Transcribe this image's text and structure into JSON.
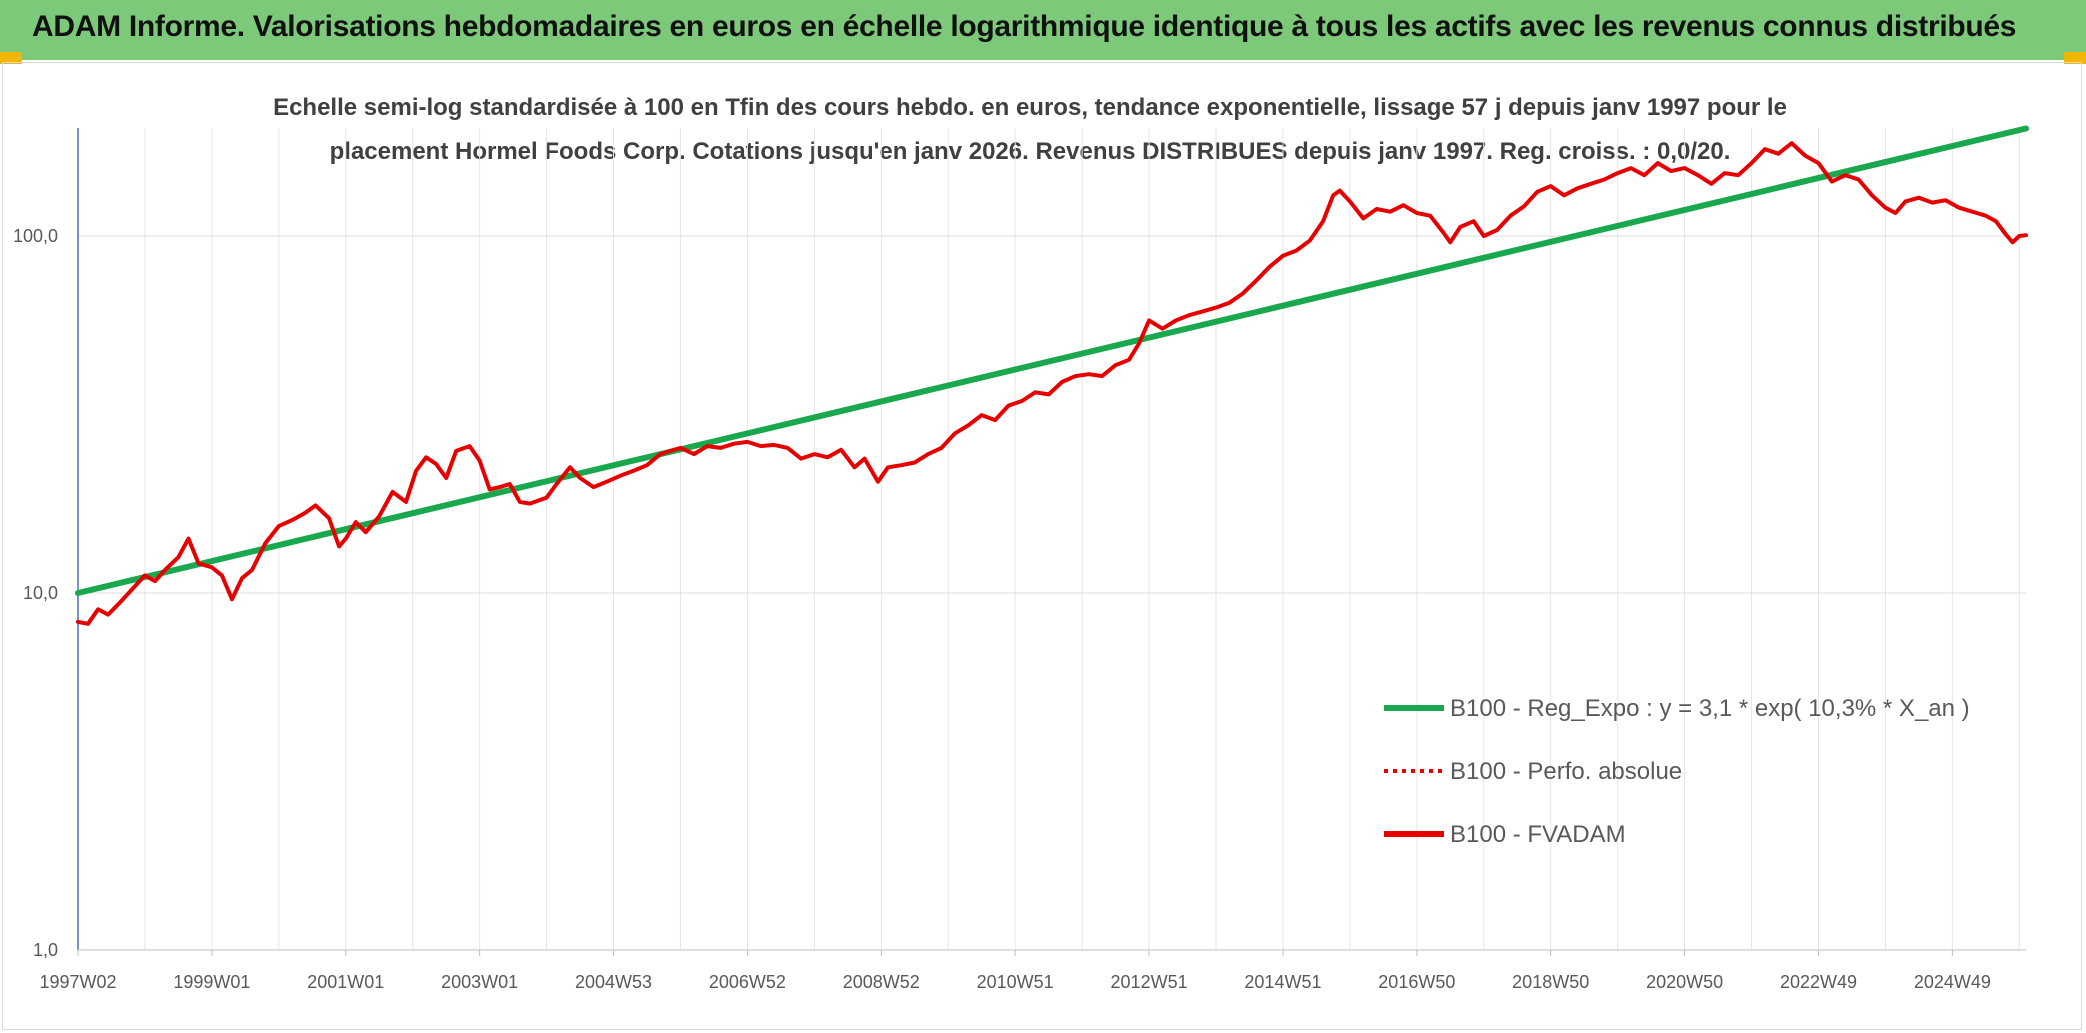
{
  "header": {
    "title": "ADAM Informe. Valorisations hebdomadaires en euros en échelle logarithmique identique à tous les actifs avec les revenus connus distribués"
  },
  "chart_data": {
    "type": "line",
    "subtitle_lines": [
      "Echelle semi-log standardisée à 100 en Tfin des cours hebdo. en euros, tendance exponentielle, lissage 57 j depuis janv 1997 pour le",
      "placement Hormel Foods Corp. Cotations jusqu'en janv 2026. Revenus DISTRIBUES depuis janv 1997. Reg. croiss. : 0,0/20."
    ],
    "y_scale": "log",
    "ylim": [
      1,
      200
    ],
    "y_ticks": [
      {
        "value": 1,
        "label": "1,0"
      },
      {
        "value": 10,
        "label": "10,0"
      },
      {
        "value": 100,
        "label": "100,0"
      }
    ],
    "xlim": [
      1997.0,
      2026.1
    ],
    "x_ticks": [
      {
        "t": 1997.0,
        "label": "1997W02"
      },
      {
        "t": 1999.0,
        "label": "1999W01"
      },
      {
        "t": 2001.0,
        "label": "2001W01"
      },
      {
        "t": 2003.0,
        "label": "2003W01"
      },
      {
        "t": 2005.0,
        "label": "2004W53"
      },
      {
        "t": 2007.0,
        "label": "2006W52"
      },
      {
        "t": 2009.0,
        "label": "2008W52"
      },
      {
        "t": 2011.0,
        "label": "2010W51"
      },
      {
        "t": 2013.0,
        "label": "2012W51"
      },
      {
        "t": 2015.0,
        "label": "2014W51"
      },
      {
        "t": 2017.0,
        "label": "2016W50"
      },
      {
        "t": 2019.0,
        "label": "2018W50"
      },
      {
        "t": 2021.0,
        "label": "2020W50"
      },
      {
        "t": 2023.0,
        "label": "2022W49"
      },
      {
        "t": 2025.0,
        "label": "2024W49"
      }
    ],
    "grid": true,
    "legend_position": "bottom-right",
    "series": [
      {
        "name": "B100 - Reg_Expo : y = 3,1 * exp( 10,3% *  X_an )",
        "color": "#1aa84e",
        "style": "solid",
        "points": [
          [
            1997.0,
            10.0
          ],
          [
            2026.1,
            200.0
          ]
        ]
      },
      {
        "name": "B100 - Perfo. absolue",
        "color": "#e60000",
        "style": "dotted",
        "points": []
      },
      {
        "name": "B100 - FVADAM",
        "color": "#e60000",
        "style": "solid",
        "points": [
          [
            1997.0,
            8.3
          ],
          [
            1997.15,
            8.2
          ],
          [
            1997.3,
            9.0
          ],
          [
            1997.45,
            8.7
          ],
          [
            1997.6,
            9.3
          ],
          [
            1997.8,
            10.2
          ],
          [
            1998.0,
            11.2
          ],
          [
            1998.15,
            10.8
          ],
          [
            1998.3,
            11.6
          ],
          [
            1998.5,
            12.6
          ],
          [
            1998.65,
            14.2
          ],
          [
            1998.8,
            12.1
          ],
          [
            1999.0,
            11.8
          ],
          [
            1999.15,
            11.2
          ],
          [
            1999.3,
            9.6
          ],
          [
            1999.45,
            11.0
          ],
          [
            1999.6,
            11.6
          ],
          [
            1999.8,
            13.8
          ],
          [
            2000.0,
            15.4
          ],
          [
            2000.2,
            16.0
          ],
          [
            2000.4,
            16.8
          ],
          [
            2000.55,
            17.6
          ],
          [
            2000.75,
            16.2
          ],
          [
            2000.9,
            13.5
          ],
          [
            2001.0,
            14.2
          ],
          [
            2001.15,
            15.8
          ],
          [
            2001.3,
            14.8
          ],
          [
            2001.5,
            16.4
          ],
          [
            2001.7,
            19.2
          ],
          [
            2001.9,
            18.0
          ],
          [
            2002.05,
            22.0
          ],
          [
            2002.2,
            24.0
          ],
          [
            2002.35,
            23.0
          ],
          [
            2002.5,
            21.0
          ],
          [
            2002.65,
            25.0
          ],
          [
            2002.85,
            25.8
          ],
          [
            2003.0,
            23.5
          ],
          [
            2003.15,
            19.5
          ],
          [
            2003.3,
            19.8
          ],
          [
            2003.45,
            20.2
          ],
          [
            2003.6,
            18.0
          ],
          [
            2003.75,
            17.8
          ],
          [
            2004.0,
            18.5
          ],
          [
            2004.15,
            20.2
          ],
          [
            2004.35,
            22.5
          ],
          [
            2004.5,
            21.0
          ],
          [
            2004.7,
            19.8
          ],
          [
            2004.9,
            20.5
          ],
          [
            2005.1,
            21.3
          ],
          [
            2005.3,
            22.0
          ],
          [
            2005.5,
            22.8
          ],
          [
            2005.7,
            24.5
          ],
          [
            2005.85,
            25.0
          ],
          [
            2006.0,
            25.5
          ],
          [
            2006.2,
            24.5
          ],
          [
            2006.4,
            25.8
          ],
          [
            2006.6,
            25.5
          ],
          [
            2006.8,
            26.2
          ],
          [
            2007.0,
            26.5
          ],
          [
            2007.2,
            25.8
          ],
          [
            2007.4,
            26.0
          ],
          [
            2007.6,
            25.5
          ],
          [
            2007.8,
            23.8
          ],
          [
            2008.0,
            24.5
          ],
          [
            2008.2,
            24.0
          ],
          [
            2008.4,
            25.2
          ],
          [
            2008.6,
            22.5
          ],
          [
            2008.75,
            23.8
          ],
          [
            2008.95,
            20.5
          ],
          [
            2009.1,
            22.5
          ],
          [
            2009.3,
            22.8
          ],
          [
            2009.5,
            23.2
          ],
          [
            2009.7,
            24.5
          ],
          [
            2009.9,
            25.5
          ],
          [
            2010.1,
            28.0
          ],
          [
            2010.3,
            29.5
          ],
          [
            2010.5,
            31.5
          ],
          [
            2010.7,
            30.5
          ],
          [
            2010.9,
            33.5
          ],
          [
            2011.1,
            34.5
          ],
          [
            2011.3,
            36.5
          ],
          [
            2011.5,
            36.0
          ],
          [
            2011.7,
            39.0
          ],
          [
            2011.9,
            40.5
          ],
          [
            2012.1,
            41.0
          ],
          [
            2012.3,
            40.5
          ],
          [
            2012.5,
            43.5
          ],
          [
            2012.7,
            45.0
          ],
          [
            2012.85,
            50.0
          ],
          [
            2013.0,
            58.0
          ],
          [
            2013.2,
            55.0
          ],
          [
            2013.4,
            58.0
          ],
          [
            2013.6,
            60.0
          ],
          [
            2013.8,
            61.5
          ],
          [
            2014.0,
            63.0
          ],
          [
            2014.2,
            65.0
          ],
          [
            2014.4,
            69.0
          ],
          [
            2014.6,
            75.0
          ],
          [
            2014.8,
            82.0
          ],
          [
            2015.0,
            88.0
          ],
          [
            2015.2,
            91.0
          ],
          [
            2015.4,
            97.0
          ],
          [
            2015.6,
            110.0
          ],
          [
            2015.75,
            130.0
          ],
          [
            2015.85,
            134.0
          ],
          [
            2016.0,
            125.0
          ],
          [
            2016.2,
            112.0
          ],
          [
            2016.4,
            119.0
          ],
          [
            2016.6,
            117.0
          ],
          [
            2016.8,
            122.0
          ],
          [
            2017.0,
            116.0
          ],
          [
            2017.2,
            114.0
          ],
          [
            2017.4,
            102.0
          ],
          [
            2017.5,
            96.0
          ],
          [
            2017.65,
            106.0
          ],
          [
            2017.85,
            110.0
          ],
          [
            2018.0,
            100.0
          ],
          [
            2018.2,
            104.0
          ],
          [
            2018.4,
            114.0
          ],
          [
            2018.6,
            121.0
          ],
          [
            2018.8,
            133.0
          ],
          [
            2019.0,
            138.0
          ],
          [
            2019.2,
            130.0
          ],
          [
            2019.4,
            136.0
          ],
          [
            2019.6,
            140.0
          ],
          [
            2019.8,
            144.0
          ],
          [
            2020.0,
            150.0
          ],
          [
            2020.2,
            155.0
          ],
          [
            2020.4,
            148.0
          ],
          [
            2020.6,
            160.0
          ],
          [
            2020.8,
            152.0
          ],
          [
            2021.0,
            155.0
          ],
          [
            2021.2,
            148.0
          ],
          [
            2021.4,
            140.0
          ],
          [
            2021.6,
            150.0
          ],
          [
            2021.8,
            148.0
          ],
          [
            2022.0,
            160.0
          ],
          [
            2022.2,
            175.0
          ],
          [
            2022.4,
            170.0
          ],
          [
            2022.6,
            182.0
          ],
          [
            2022.8,
            168.0
          ],
          [
            2023.0,
            160.0
          ],
          [
            2023.2,
            142.0
          ],
          [
            2023.4,
            148.0
          ],
          [
            2023.6,
            144.0
          ],
          [
            2023.8,
            130.0
          ],
          [
            2024.0,
            120.0
          ],
          [
            2024.15,
            116.0
          ],
          [
            2024.3,
            125.0
          ],
          [
            2024.5,
            128.0
          ],
          [
            2024.7,
            124.0
          ],
          [
            2024.9,
            126.0
          ],
          [
            2025.1,
            120.0
          ],
          [
            2025.3,
            117.0
          ],
          [
            2025.5,
            114.0
          ],
          [
            2025.65,
            110.0
          ],
          [
            2025.8,
            101.0
          ],
          [
            2025.9,
            96.0
          ],
          [
            2026.0,
            100.0
          ],
          [
            2026.1,
            100.5
          ]
        ]
      }
    ]
  }
}
